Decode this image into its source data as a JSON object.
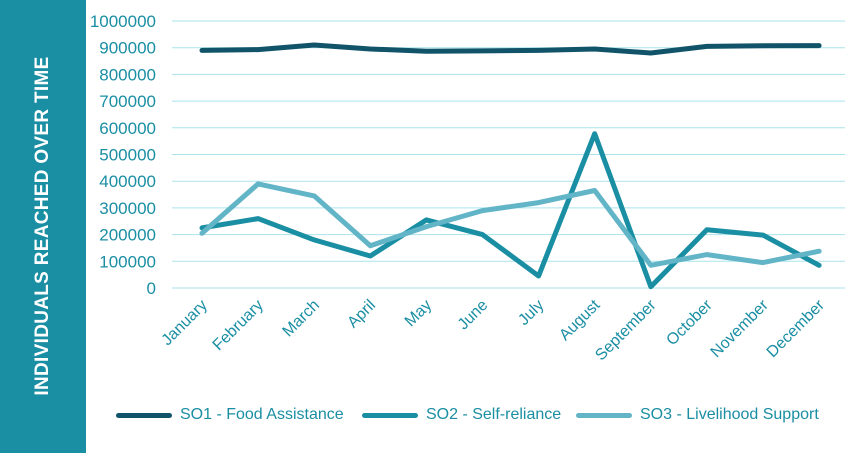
{
  "side_title": "INDIVIDUALS REACHED OVER  TIME",
  "colors": {
    "panel": "#1a8ea3",
    "grid": "#a9e3ec",
    "axis_text": "#1a8ea3"
  },
  "chart_data": {
    "type": "line",
    "title": "",
    "xlabel": "",
    "ylabel": "INDIVIDUALS REACHED OVER  TIME",
    "ylim": [
      0,
      1000000
    ],
    "yticks": [
      "1000000",
      "900000",
      "800000",
      "700000",
      "600000",
      "500000",
      "400000",
      "300000",
      "200000",
      "100000",
      "0"
    ],
    "grid": true,
    "legend_position": "bottom",
    "categories": [
      "January",
      "February",
      "March",
      "April",
      "May",
      "June",
      "July",
      "August",
      "September",
      "October",
      "November",
      "December"
    ],
    "series": [
      {
        "name": "SO1 - Food Assistance",
        "color": "#11546a",
        "values": [
          890000,
          893000,
          910000,
          895000,
          887000,
          888000,
          890000,
          895000,
          880000,
          905000,
          907000,
          908000
        ]
      },
      {
        "name": "SO2 - Self-reliance",
        "color": "#1a8ea3",
        "values": [
          225000,
          260000,
          180000,
          120000,
          255000,
          200000,
          45000,
          578000,
          5000,
          218000,
          198000,
          85000
        ]
      },
      {
        "name": "SO3 - Livelihood Support",
        "color": "#62b4c7",
        "values": [
          205000,
          390000,
          345000,
          158000,
          230000,
          290000,
          320000,
          365000,
          85000,
          125000,
          95000,
          138000
        ]
      }
    ]
  }
}
